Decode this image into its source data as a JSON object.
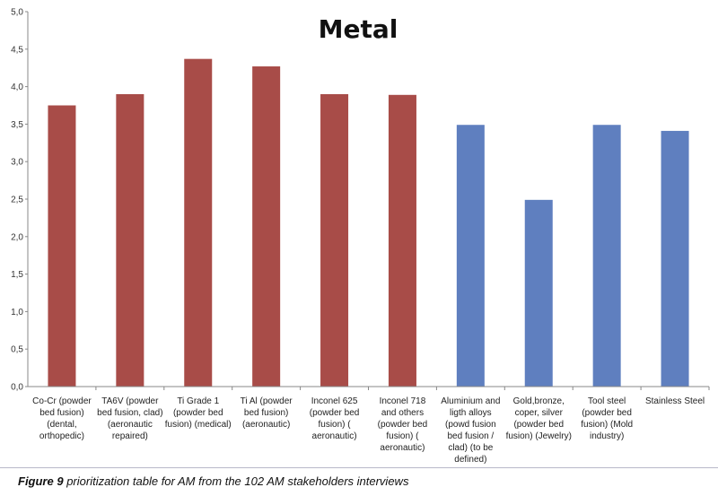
{
  "chart_data": {
    "type": "bar",
    "title": "Metal",
    "xlabel": "",
    "ylabel": "",
    "ylim": [
      0,
      5
    ],
    "y_tick_step": 0.5,
    "y_ticks": [
      "0,0",
      "0,5",
      "1,0",
      "1,5",
      "2,0",
      "2,5",
      "3,0",
      "3,5",
      "4,0",
      "4,5",
      "5,0"
    ],
    "grid": false,
    "legend": "none",
    "categories": [
      [
        "Co-Cr (powder",
        "bed fusion)",
        "(dental,",
        "orthopedic)"
      ],
      [
        "TA6V (powder",
        "bed fusion, clad)",
        "(aeronautic",
        "repaired)"
      ],
      [
        "Ti Grade 1",
        "(powder bed",
        "fusion) (medical)"
      ],
      [
        "Ti Al (powder",
        "bed fusion)",
        "(aeronautic)"
      ],
      [
        "Inconel 625",
        "(powder bed",
        "fusion) (",
        "aeronautic)"
      ],
      [
        "Inconel 718",
        "and others",
        "(powder bed",
        "fusion) (",
        "aeronautic)"
      ],
      [
        "Aluminium and",
        "ligth alloys",
        "(powd fusion",
        "bed fusion /",
        "clad) (to be",
        "defined)"
      ],
      [
        "Gold,bronze,",
        "coper, silver",
        "(powder bed",
        "fusion) (Jewelry)"
      ],
      [
        "Tool steel",
        "(powder bed",
        "fusion) (Mold",
        "industry)"
      ],
      [
        "Stainless Steel"
      ]
    ],
    "values": [
      3.75,
      3.9,
      4.37,
      4.27,
      3.9,
      3.89,
      3.49,
      2.49,
      3.49,
      3.41
    ],
    "bar_colors": [
      "#a84c48",
      "#a84c48",
      "#a84c48",
      "#a84c48",
      "#a84c48",
      "#a84c48",
      "#5f7fbf",
      "#5f7fbf",
      "#5f7fbf",
      "#5f7fbf"
    ]
  },
  "caption": {
    "label": "Figure 9",
    "text": " prioritization table for AM from the 102 AM stakeholders interviews"
  },
  "colors": {
    "axis": "#888888"
  }
}
